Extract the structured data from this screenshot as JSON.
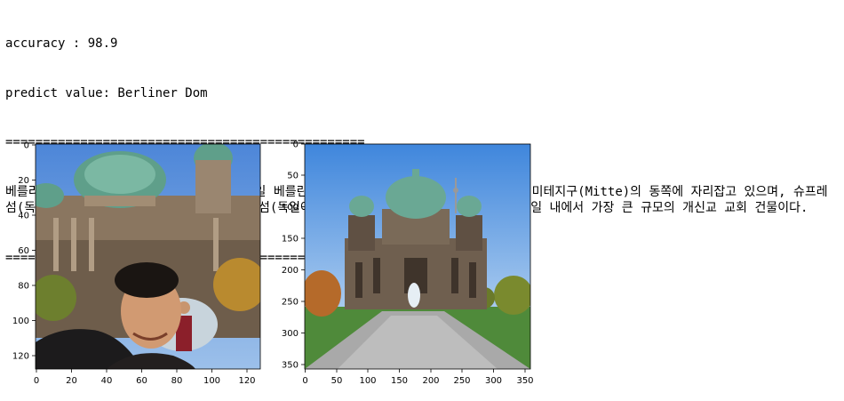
{
  "output": {
    "accuracy_line": "accuracy : 98.9",
    "predict_line": "predict value: Berliner Dom",
    "separator": "================================================",
    "description": "베를리너 돔(독일어: Berliner Dom)은 독일 베를린에 있는 독일 개신교 교회이다. 베를린 미테지구(Mitte)의 동쪽에 자리잡고 있으며, 슈프레섬(독일어: Spreeinsel)의 북쪽인 박물관 섬(독일어: Museuminsel)의 랜드마크이다. 독일 내에서 가장 큰 규모의 개신교 교회 건물이다."
  },
  "plots": {
    "left": {
      "y_ticks": [
        "0",
        "20",
        "40",
        "60",
        "80",
        "100",
        "120"
      ],
      "x_ticks": [
        "0",
        "20",
        "40",
        "60",
        "80",
        "100",
        "120"
      ]
    },
    "right": {
      "y_ticks": [
        "0",
        "50",
        "100",
        "150",
        "200",
        "250",
        "300",
        "350"
      ],
      "x_ticks": [
        "0",
        "50",
        "100",
        "150",
        "200",
        "250",
        "300",
        "350"
      ]
    }
  },
  "colors": {
    "sky": "#5b8ed6",
    "dome": "#6aa894",
    "stone": "#7a6b5a",
    "grass": "#4f8a3a",
    "path": "#a9a9a9"
  }
}
